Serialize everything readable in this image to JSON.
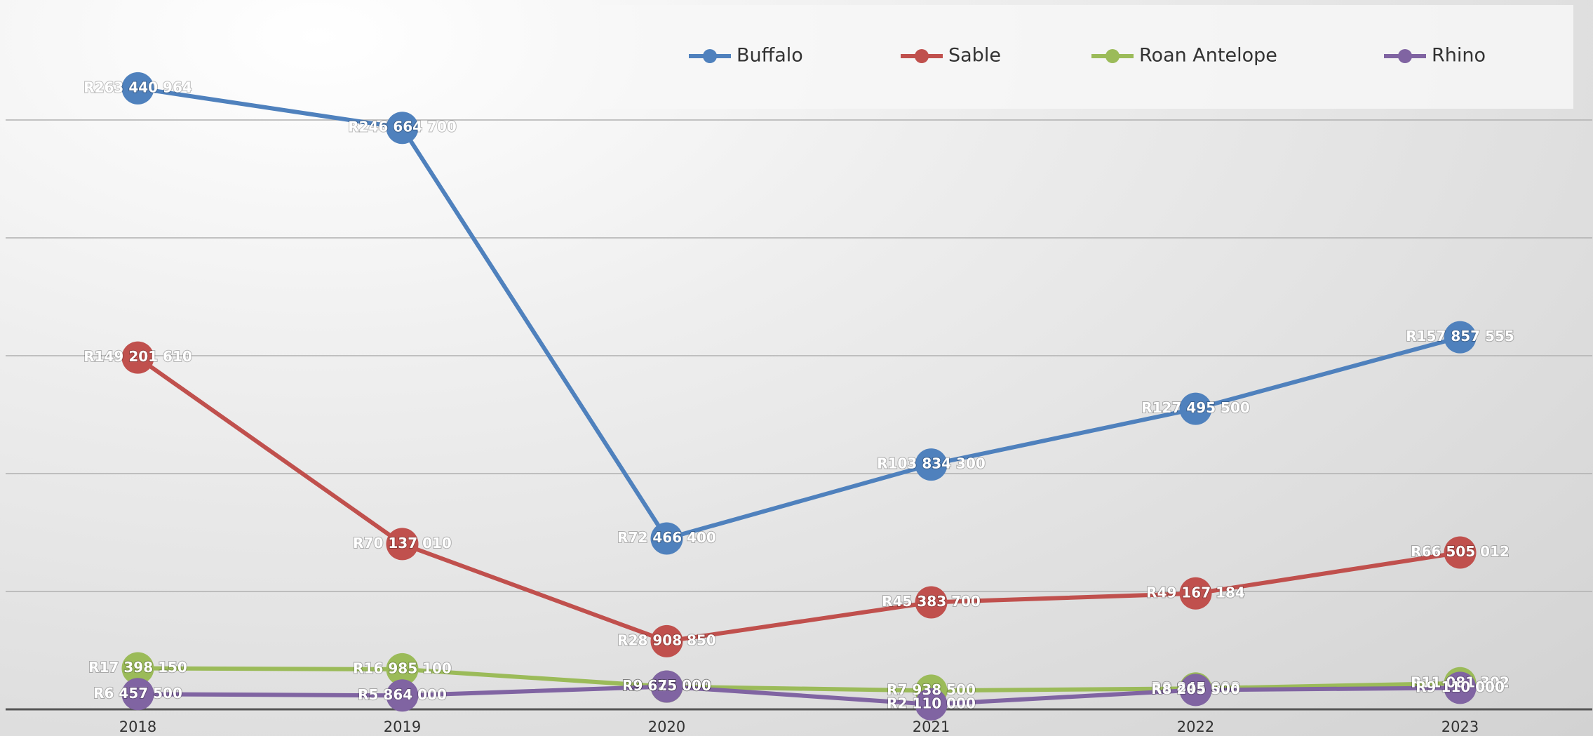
{
  "chart_data": {
    "type": "line",
    "categories": [
      "2018",
      "2019",
      "2020",
      "2021",
      "2022",
      "2023"
    ],
    "series": [
      {
        "name": "Buffalo",
        "color": "#4f81bd",
        "values": [
          263440964,
          246664700,
          72466400,
          103834300,
          127495500,
          157857555
        ],
        "value_labels": [
          "R263 440 964",
          "R246 664 700",
          "R72 466 400",
          "R103 834 300",
          "R127 495 500",
          "R157 857 555"
        ]
      },
      {
        "name": "Sable",
        "color": "#c0504d",
        "values": [
          149201610,
          70137010,
          28908850,
          45383700,
          49167184,
          66505012
        ],
        "value_labels": [
          "R149 201 610",
          "R70 137 010",
          "R28 908 850",
          "R45 383 700",
          "R49 167 184",
          "R66 505 012"
        ]
      },
      {
        "name": "Roan Antelope",
        "color": "#9bbb59",
        "values": [
          17398150,
          16985100,
          9625000,
          7938500,
          8845008,
          11081302
        ],
        "value_labels": [
          "R17 398 150",
          "R16 985 100",
          "R9 625 000",
          "R7 938 500",
          "R8 845 008",
          "R11 081 302"
        ]
      },
      {
        "name": "Rhino",
        "color": "#8064a2",
        "values": [
          6457500,
          5864000,
          9675000,
          2110000,
          8205500,
          9110000
        ],
        "value_labels": [
          "R6 457 500",
          "R5 864 000",
          "R9 675 000",
          "R2 110 000",
          "R8 205 500",
          "R9 110 000"
        ]
      }
    ],
    "ylim": [
      0,
      300000000
    ],
    "yticks": [
      0,
      50000000,
      100000000,
      150000000,
      200000000,
      250000000
    ],
    "grid": true,
    "legend": "top-right"
  }
}
